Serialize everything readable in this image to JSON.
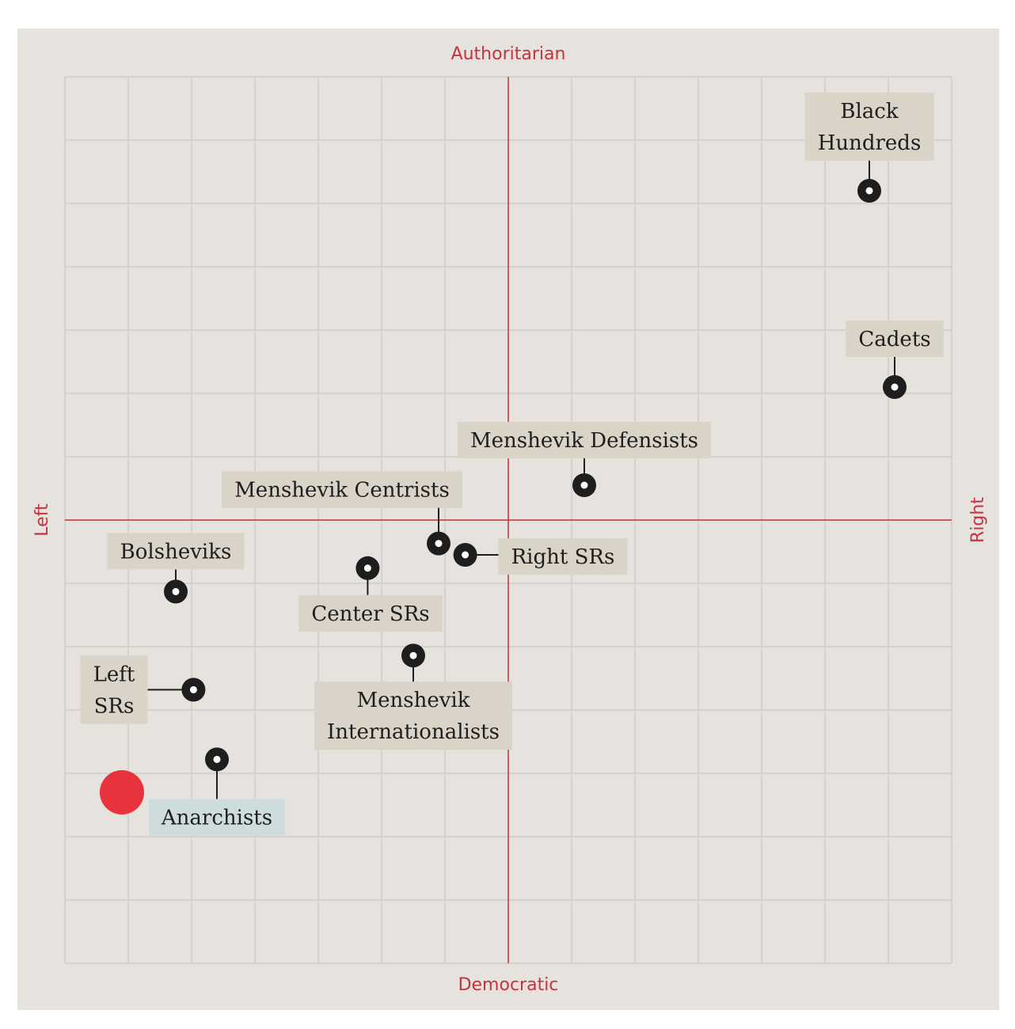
{
  "chart_data": {
    "type": "scatter",
    "title": "",
    "axes": {
      "top": "Authoritarian",
      "bottom": "Democratic",
      "left": "Left",
      "right": "Right"
    },
    "xlim": [
      -7,
      7
    ],
    "ylim": [
      -7,
      7
    ],
    "grid": true,
    "colors": {
      "panel": "#e6e2dd",
      "grid": "#cfcbc6",
      "axis": "#c6333f",
      "point": "#1e1e1e",
      "label_bg": "#d9d3c8",
      "selected_label_bg": "#cfdcdc",
      "user_marker": "#e8333c"
    },
    "points": [
      {
        "name": "Black Hundreds",
        "lines": [
          "Black",
          "Hundreds"
        ],
        "x": 5.7,
        "y": 5.2
      },
      {
        "name": "Cadets",
        "lines": [
          "Cadets"
        ],
        "x": 6.1,
        "y": 2.1
      },
      {
        "name": "Menshevik Defensists",
        "lines": [
          "Menshevik Defensists"
        ],
        "x": 1.2,
        "y": 0.55
      },
      {
        "name": "Menshevik Centrists",
        "lines": [
          "Menshevik Centrists"
        ],
        "x": -1.1,
        "y": -0.37
      },
      {
        "name": "Right SRs",
        "lines": [
          "Right SRs"
        ],
        "x": -0.68,
        "y": -0.55
      },
      {
        "name": "Bolsheviks",
        "lines": [
          "Bolsheviks"
        ],
        "x": -5.25,
        "y": -1.13
      },
      {
        "name": "Center SRs",
        "lines": [
          "Center SRs"
        ],
        "x": -2.22,
        "y": -0.76
      },
      {
        "name": "Menshevik Internationalists",
        "lines": [
          "Menshevik",
          "Internationalists"
        ],
        "x": -1.5,
        "y": -2.14
      },
      {
        "name": "Left SRs",
        "lines": [
          "Left",
          "SRs"
        ],
        "x": -4.97,
        "y": -2.68
      },
      {
        "name": "Anarchists",
        "lines": [
          "Anarchists"
        ],
        "x": -4.6,
        "y": -3.78,
        "selected": true
      }
    ],
    "user_position": {
      "x": -6.1,
      "y": -4.3
    }
  }
}
